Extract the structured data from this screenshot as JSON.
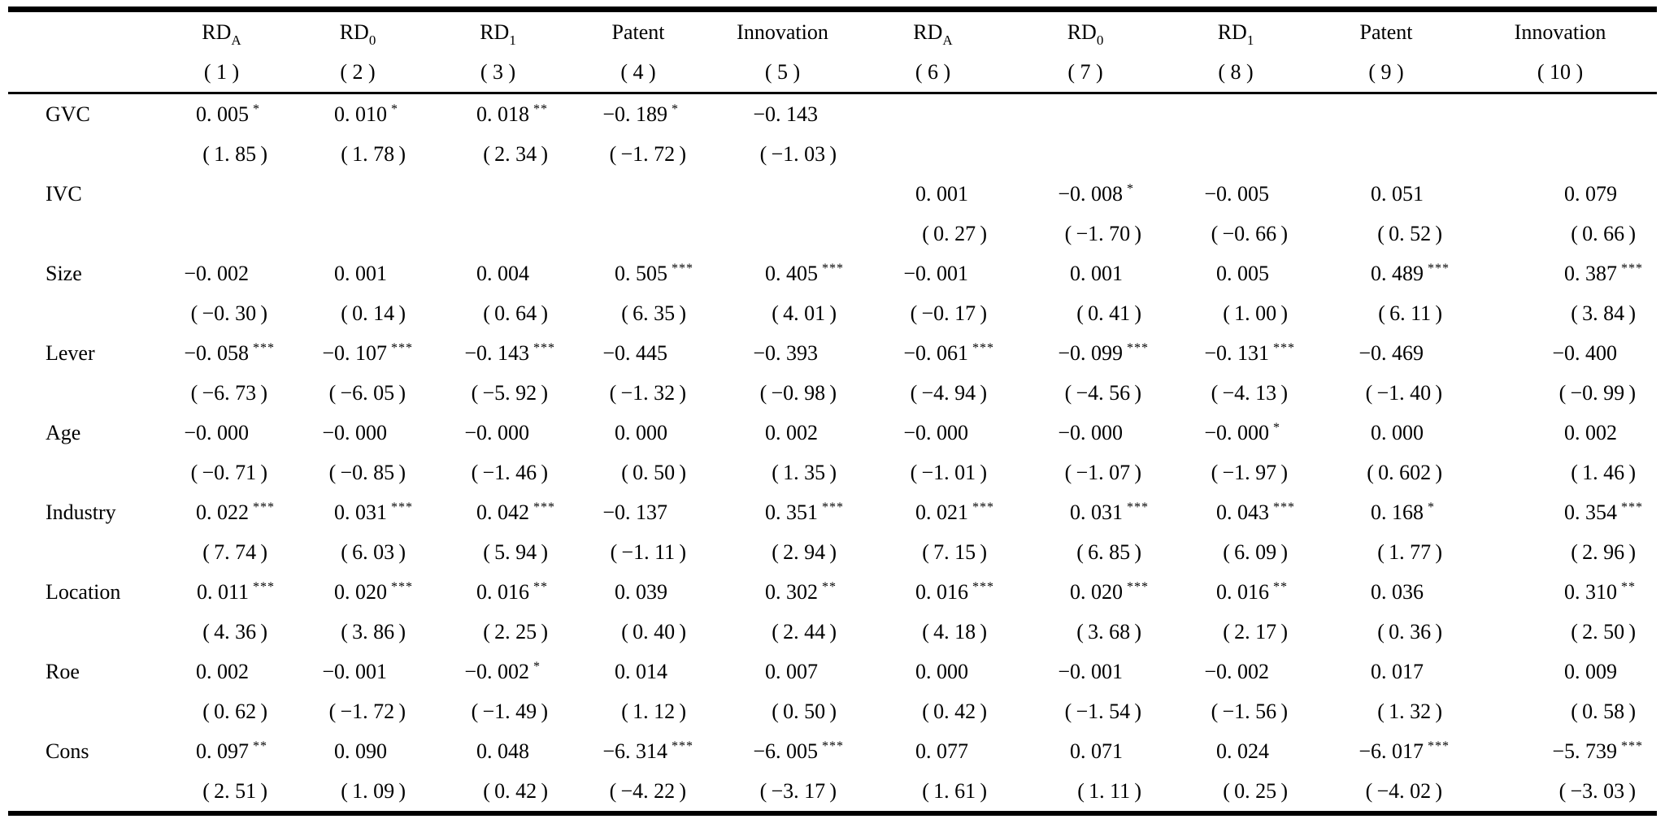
{
  "page": {
    "background": "#ffffff",
    "text_color": "#000000",
    "rule_color": "#000000"
  },
  "table": {
    "columns": [
      {
        "main": "RD",
        "sub": "A",
        "num": "( 1 )"
      },
      {
        "main": "RD",
        "sub": "0",
        "num": "( 2 )"
      },
      {
        "main": "RD",
        "sub": "1",
        "num": "( 3 )"
      },
      {
        "main": "Patent",
        "sub": "",
        "num": "( 4 )"
      },
      {
        "main": "Innovation",
        "sub": "",
        "num": "( 5 )"
      },
      {
        "main": "RD",
        "sub": "A",
        "num": "( 6 )"
      },
      {
        "main": "RD",
        "sub": "0",
        "num": "( 7 )"
      },
      {
        "main": "RD",
        "sub": "1",
        "num": "( 8 )"
      },
      {
        "main": "Patent",
        "sub": "",
        "num": "( 9 )"
      },
      {
        "main": "Innovation",
        "sub": "",
        "num": "( 10 )"
      }
    ],
    "rows": [
      {
        "label": "GVC",
        "coef": [
          {
            "v": "0. 005",
            "s": "*"
          },
          {
            "v": "0. 010",
            "s": "*"
          },
          {
            "v": "0. 018",
            "s": "**"
          },
          {
            "v": "−0. 189",
            "s": "*"
          },
          {
            "v": "−0. 143",
            "s": ""
          },
          null,
          null,
          null,
          null,
          null
        ],
        "t": [
          "( 1. 85 )",
          "( 1. 78 )",
          "( 2. 34 )",
          "( −1. 72 )",
          "( −1. 03 )",
          null,
          null,
          null,
          null,
          null
        ]
      },
      {
        "label": "IVC",
        "coef": [
          null,
          null,
          null,
          null,
          null,
          {
            "v": "0. 001",
            "s": ""
          },
          {
            "v": "−0. 008",
            "s": "*"
          },
          {
            "v": "−0. 005",
            "s": ""
          },
          {
            "v": "0. 051",
            "s": ""
          },
          {
            "v": "0. 079",
            "s": ""
          }
        ],
        "t": [
          null,
          null,
          null,
          null,
          null,
          "( 0. 27 )",
          "( −1. 70 )",
          "( −0. 66 )",
          "( 0. 52 )",
          "( 0. 66 )"
        ]
      },
      {
        "label": "Size",
        "coef": [
          {
            "v": "−0. 002",
            "s": ""
          },
          {
            "v": "0. 001",
            "s": ""
          },
          {
            "v": "0. 004",
            "s": ""
          },
          {
            "v": "0. 505",
            "s": "***"
          },
          {
            "v": "0. 405",
            "s": "***"
          },
          {
            "v": "−0. 001",
            "s": ""
          },
          {
            "v": "0. 001",
            "s": ""
          },
          {
            "v": "0. 005",
            "s": ""
          },
          {
            "v": "0. 489",
            "s": "***"
          },
          {
            "v": "0. 387",
            "s": "***"
          }
        ],
        "t": [
          "( −0. 30 )",
          "( 0. 14 )",
          "( 0. 64 )",
          "( 6. 35 )",
          "( 4. 01 )",
          "( −0. 17 )",
          "( 0. 41 )",
          "( 1. 00 )",
          "( 6. 11 )",
          "( 3. 84 )"
        ]
      },
      {
        "label": "Lever",
        "coef": [
          {
            "v": "−0. 058",
            "s": "***"
          },
          {
            "v": "−0. 107",
            "s": "***"
          },
          {
            "v": "−0. 143",
            "s": "***"
          },
          {
            "v": "−0. 445",
            "s": ""
          },
          {
            "v": "−0. 393",
            "s": ""
          },
          {
            "v": "−0. 061",
            "s": "***"
          },
          {
            "v": "−0. 099",
            "s": "***"
          },
          {
            "v": "−0. 131",
            "s": "***"
          },
          {
            "v": "−0. 469",
            "s": ""
          },
          {
            "v": "−0. 400",
            "s": ""
          }
        ],
        "t": [
          "( −6. 73 )",
          "( −6. 05 )",
          "( −5. 92 )",
          "( −1. 32 )",
          "( −0. 98 )",
          "( −4. 94 )",
          "( −4. 56 )",
          "( −4. 13 )",
          "( −1. 40 )",
          "( −0. 99 )"
        ]
      },
      {
        "label": "Age",
        "coef": [
          {
            "v": "−0. 000",
            "s": ""
          },
          {
            "v": "−0. 000",
            "s": ""
          },
          {
            "v": "−0. 000",
            "s": ""
          },
          {
            "v": "0. 000",
            "s": ""
          },
          {
            "v": "0. 002",
            "s": ""
          },
          {
            "v": "−0. 000",
            "s": ""
          },
          {
            "v": "−0. 000",
            "s": ""
          },
          {
            "v": "−0. 000",
            "s": "*"
          },
          {
            "v": "0. 000",
            "s": ""
          },
          {
            "v": "0. 002",
            "s": ""
          }
        ],
        "t": [
          "( −0. 71 )",
          "( −0. 85 )",
          "( −1. 46 )",
          "( 0. 50 )",
          "( 1. 35 )",
          "( −1. 01 )",
          "( −1. 07 )",
          "( −1. 97 )",
          "( 0. 602 )",
          "( 1. 46 )"
        ]
      },
      {
        "label": "Industry",
        "coef": [
          {
            "v": "0. 022",
            "s": "***"
          },
          {
            "v": "0. 031",
            "s": "***"
          },
          {
            "v": "0. 042",
            "s": "***"
          },
          {
            "v": "−0. 137",
            "s": ""
          },
          {
            "v": "0. 351",
            "s": "***"
          },
          {
            "v": "0. 021",
            "s": "***"
          },
          {
            "v": "0. 031",
            "s": "***"
          },
          {
            "v": "0. 043",
            "s": "***"
          },
          {
            "v": "0. 168",
            "s": "*"
          },
          {
            "v": "0. 354",
            "s": "***"
          }
        ],
        "t": [
          "( 7. 74 )",
          "( 6. 03 )",
          "( 5. 94 )",
          "( −1. 11 )",
          "( 2. 94 )",
          "( 7. 15 )",
          "( 6. 85 )",
          "( 6. 09 )",
          "( 1. 77 )",
          "( 2. 96 )"
        ]
      },
      {
        "label": "Location",
        "coef": [
          {
            "v": "0. 011",
            "s": "***"
          },
          {
            "v": "0. 020",
            "s": "***"
          },
          {
            "v": "0. 016",
            "s": "**"
          },
          {
            "v": "0. 039",
            "s": ""
          },
          {
            "v": "0. 302",
            "s": "**"
          },
          {
            "v": "0. 016",
            "s": "***"
          },
          {
            "v": "0. 020",
            "s": "***"
          },
          {
            "v": "0. 016",
            "s": "**"
          },
          {
            "v": "0. 036",
            "s": ""
          },
          {
            "v": "0. 310",
            "s": "**"
          }
        ],
        "t": [
          "( 4. 36 )",
          "( 3. 86 )",
          "( 2. 25 )",
          "( 0. 40 )",
          "( 2. 44 )",
          "( 4. 18 )",
          "( 3. 68 )",
          "( 2. 17 )",
          "( 0. 36 )",
          "( 2. 50 )"
        ]
      },
      {
        "label": "Roe",
        "coef": [
          {
            "v": "0. 002",
            "s": ""
          },
          {
            "v": "−0. 001",
            "s": ""
          },
          {
            "v": "−0. 002",
            "s": "*"
          },
          {
            "v": "0. 014",
            "s": ""
          },
          {
            "v": "0. 007",
            "s": ""
          },
          {
            "v": "0. 000",
            "s": ""
          },
          {
            "v": "−0. 001",
            "s": ""
          },
          {
            "v": "−0. 002",
            "s": ""
          },
          {
            "v": "0. 017",
            "s": ""
          },
          {
            "v": "0. 009",
            "s": ""
          }
        ],
        "t": [
          "( 0. 62 )",
          "( −1. 72 )",
          "( −1. 49 )",
          "( 1. 12 )",
          "( 0. 50 )",
          "( 0. 42 )",
          "( −1. 54 )",
          "( −1. 56 )",
          "( 1. 32 )",
          "( 0. 58 )"
        ]
      },
      {
        "label": "Cons",
        "coef": [
          {
            "v": "0. 097",
            "s": "**"
          },
          {
            "v": "0. 090",
            "s": ""
          },
          {
            "v": "0. 048",
            "s": ""
          },
          {
            "v": "−6. 314",
            "s": "***"
          },
          {
            "v": "−6. 005",
            "s": "***"
          },
          {
            "v": "0. 077",
            "s": ""
          },
          {
            "v": "0. 071",
            "s": ""
          },
          {
            "v": "0. 024",
            "s": ""
          },
          {
            "v": "−6. 017",
            "s": "***"
          },
          {
            "v": "−5. 739",
            "s": "***"
          }
        ],
        "t": [
          "( 2. 51 )",
          "( 1. 09 )",
          "( 0. 42 )",
          "( −4. 22 )",
          "( −3. 17 )",
          "( 1. 61 )",
          "( 1. 11 )",
          "( 0. 25 )",
          "( −4. 02 )",
          "( −3. 03 )"
        ]
      }
    ]
  }
}
